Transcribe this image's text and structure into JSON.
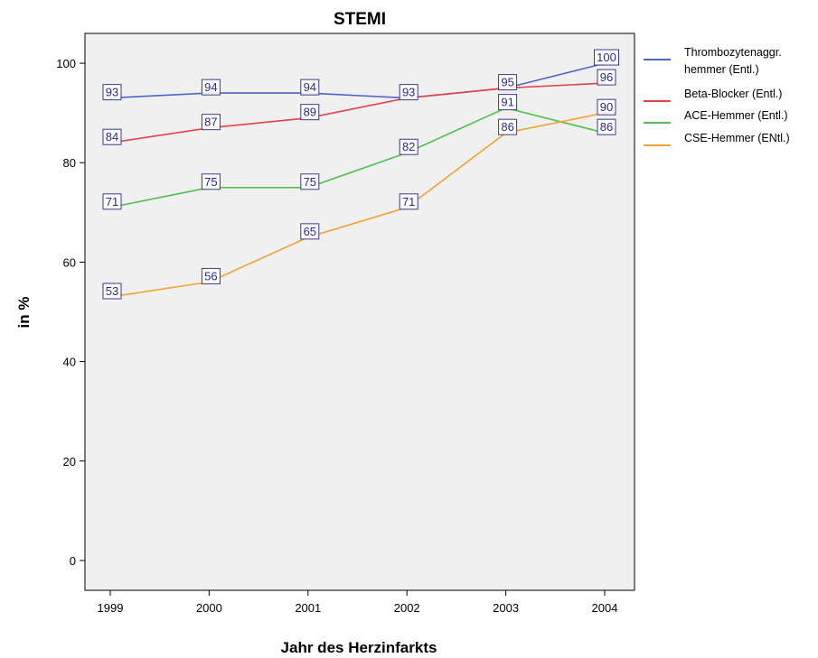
{
  "chart_data": {
    "type": "line",
    "title": "STEMI",
    "xlabel": "Jahr des Herzinfarkts",
    "ylabel": "in %",
    "categories": [
      "1999",
      "2000",
      "2001",
      "2002",
      "2003",
      "2004"
    ],
    "ylim": [
      -6,
      106
    ],
    "yticks": [
      "0",
      "20",
      "40",
      "60",
      "80",
      "100"
    ],
    "grid": false,
    "legend_position": "right",
    "plot_background": "#f0f0f0",
    "series": [
      {
        "name": "Thrombozytenaggr. hemmer (Entl.)",
        "legend_lines": [
          "Thrombozytenaggr.",
          "hemmer (Entl.)"
        ],
        "color": "#4a66c4",
        "values": [
          93,
          94,
          94,
          93,
          95,
          100
        ],
        "labels": [
          "93",
          "94",
          "94",
          "93",
          "95",
          "100"
        ]
      },
      {
        "name": "Beta-Blocker (Entl.)",
        "legend_lines": [
          "Beta-Blocker (Entl.)"
        ],
        "color": "#e8404a",
        "values": [
          84,
          87,
          89,
          93,
          95,
          96
        ],
        "labels": [
          "84",
          "87",
          "89",
          "",
          "",
          "96"
        ]
      },
      {
        "name": "ACE-Hemmer (Entl.)",
        "legend_lines": [
          "ACE-Hemmer (Entl.)"
        ],
        "color": "#4fc04f",
        "values": [
          71,
          75,
          75,
          82,
          91,
          86
        ],
        "labels": [
          "71",
          "75",
          "75",
          "82",
          "91",
          "86"
        ]
      },
      {
        "name": "CSE-Hemmer (ENtl.)",
        "legend_lines": [
          "CSE-Hemmer (ENtl.)"
        ],
        "color": "#f5a030",
        "values": [
          53,
          56,
          65,
          71,
          86,
          90
        ],
        "labels": [
          "53",
          "56",
          "65",
          "71",
          "86",
          "90"
        ]
      }
    ]
  }
}
